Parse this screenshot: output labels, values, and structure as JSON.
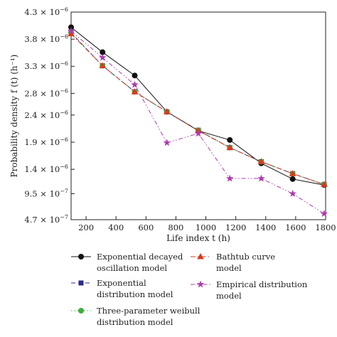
{
  "chart_data": {
    "type": "line",
    "xlabel": "Life index t (h)",
    "ylabel": "Probability density f (t) (h⁻¹)",
    "xlim": [
      100,
      1800
    ],
    "ylim": [
      4.7e-07,
      4.3e-06
    ],
    "x_ticks": [
      200,
      400,
      600,
      800,
      1000,
      1200,
      1400,
      1600,
      1800
    ],
    "x_tick_labels": [
      "200",
      "400",
      "600",
      "800",
      "1000",
      "1200",
      "1400",
      "1600",
      "1800"
    ],
    "y_ticks": [
      4.7e-07,
      9.5e-07,
      1.4e-06,
      1.9e-06,
      2.4e-06,
      2.8e-06,
      3.3e-06,
      3.8e-06,
      4.3e-06
    ],
    "y_tick_labels": [
      {
        "mantissa": "4.7",
        "exp": "−7"
      },
      {
        "mantissa": "9.5",
        "exp": "−7"
      },
      {
        "mantissa": "1.4",
        "exp": "−6"
      },
      {
        "mantissa": "1.9",
        "exp": "−6"
      },
      {
        "mantissa": "2.4",
        "exp": "−6"
      },
      {
        "mantissa": "2.8",
        "exp": "−6"
      },
      {
        "mantissa": "3.3",
        "exp": "−6"
      },
      {
        "mantissa": "3.8",
        "exp": "−6"
      },
      {
        "mantissa": "4.3",
        "exp": "−6"
      }
    ],
    "x": [
      100,
      310,
      525,
      740,
      950,
      1160,
      1370,
      1580,
      1790
    ],
    "series": [
      {
        "name": "Exponential decayed oscillation model",
        "legend_lines": [
          "Exponential decayed",
          "oscillation model"
        ],
        "color": "#111111",
        "marker": "circle",
        "dash": "solid",
        "values": [
          4.02e-06,
          3.56e-06,
          3.13e-06,
          2.46e-06,
          2.11e-06,
          1.94e-06,
          1.51e-06,
          1.22e-06,
          1.11e-06
        ]
      },
      {
        "name": "Exponential distribution model",
        "legend_lines": [
          "Exponential",
          "distribution model"
        ],
        "color": "#2b2b8f",
        "marker": "square",
        "dash": "dash",
        "values": [
          3.92e-06,
          3.31e-06,
          2.83e-06,
          2.46e-06,
          2.12e-06,
          1.8e-06,
          1.54e-06,
          1.32e-06,
          1.12e-06
        ]
      },
      {
        "name": "Three-parameter weibull distribution model",
        "legend_lines": [
          "Three-parameter weibull",
          "distribution model"
        ],
        "color": "#3ab03a",
        "marker": "circle",
        "dash": "dot",
        "values": [
          3.92e-06,
          3.31e-06,
          2.83e-06,
          2.46e-06,
          2.12e-06,
          1.8e-06,
          1.54e-06,
          1.32e-06,
          1.12e-06
        ]
      },
      {
        "name": "Bathtub curve model",
        "legend_lines": [
          "Bathtub curve",
          "model"
        ],
        "color": "#d93a1e",
        "marker": "triangle",
        "dash": "dashdot",
        "values": [
          3.9e-06,
          3.31e-06,
          2.83e-06,
          2.46e-06,
          2.11e-06,
          1.8e-06,
          1.54e-06,
          1.32e-06,
          1.12e-06
        ]
      },
      {
        "name": "Empirical distribution model",
        "legend_lines": [
          "Empirical distribution",
          "model"
        ],
        "color": "#b03ab0",
        "marker": "star",
        "dash": "dashdotdot",
        "values": [
          3.95e-06,
          3.46e-06,
          2.96e-06,
          1.89e-06,
          2.06e-06,
          1.23e-06,
          1.23e-06,
          9.5e-07,
          5.8e-07
        ]
      }
    ],
    "legend_position": "bottom",
    "grid": false
  }
}
